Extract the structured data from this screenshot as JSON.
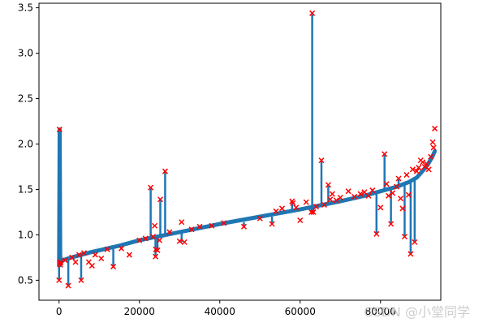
{
  "watermark": "CSDN @小堂同学",
  "chart_data": {
    "type": "line",
    "title": "",
    "xlabel": "",
    "ylabel": "",
    "xlim": [
      -5000,
      95000
    ],
    "ylim": [
      0.28,
      3.55
    ],
    "xticks": [
      0,
      20000,
      40000,
      60000,
      80000
    ],
    "yticks": [
      0.5,
      1.0,
      1.5,
      2.0,
      2.5,
      3.0,
      3.5
    ],
    "xtick_labels": [
      "0",
      "20000",
      "40000",
      "60000",
      "80000"
    ],
    "ytick_labels": [
      "0.5",
      "1.0",
      "1.5",
      "2.0",
      "2.5",
      "3.0",
      "3.5"
    ],
    "grid": false,
    "colors": {
      "line": "#1f77b4",
      "markers": "#ff0000"
    },
    "series": [
      {
        "type": "line",
        "x": [
          0,
          150,
          300,
          3000,
          8000,
          15000,
          20000,
          30000,
          40000,
          50000,
          60000,
          70000,
          76000,
          80000,
          84000,
          87000,
          89000,
          90000,
          91000,
          92000,
          93000,
          93500
        ],
        "y": [
          0.66,
          2.16,
          0.71,
          0.75,
          0.81,
          0.88,
          0.94,
          1.03,
          1.12,
          1.2,
          1.28,
          1.37,
          1.43,
          1.48,
          1.53,
          1.58,
          1.63,
          1.68,
          1.73,
          1.79,
          1.87,
          1.92
        ]
      },
      {
        "type": "spikes",
        "x": [
          0,
          100,
          2300,
          5500,
          13500,
          22800,
          24000,
          24500,
          25200,
          26400,
          30500,
          46000,
          53000,
          58000,
          62800,
          63000,
          63300,
          65300,
          67000,
          79000,
          81000,
          82600,
          84500,
          86000,
          87500,
          88500
        ],
        "base": [
          0.73,
          0.72,
          0.76,
          0.78,
          0.86,
          0.96,
          0.97,
          0.97,
          0.98,
          1.0,
          1.03,
          1.14,
          1.2,
          1.26,
          1.3,
          1.31,
          1.31,
          1.32,
          1.35,
          1.47,
          1.5,
          1.52,
          1.54,
          1.56,
          1.59,
          1.62
        ],
        "y": [
          0.5,
          2.16,
          0.44,
          0.5,
          0.65,
          1.52,
          0.76,
          0.83,
          1.39,
          1.7,
          0.92,
          1.09,
          1.12,
          1.37,
          1.25,
          3.44,
          1.25,
          1.82,
          1.55,
          1.01,
          1.89,
          1.12,
          1.62,
          0.98,
          0.79,
          0.92
        ]
      },
      {
        "type": "markers",
        "marker": "x",
        "x": [
          0,
          100,
          200,
          300,
          400,
          1500,
          2300,
          3200,
          4100,
          5000,
          5500,
          6200,
          7400,
          8200,
          9000,
          10500,
          12000,
          13500,
          15500,
          17500,
          20000,
          21500,
          22800,
          23400,
          23800,
          24000,
          24100,
          24500,
          25000,
          25200,
          26400,
          27500,
          30000,
          30500,
          31200,
          33000,
          35000,
          38000,
          41000,
          46000,
          50000,
          53000,
          54000,
          55500,
          58000,
          58200,
          59000,
          60000,
          61500,
          62800,
          63000,
          63300,
          64000,
          65300,
          66000,
          67000,
          67500,
          68000,
          69000,
          70000,
          72000,
          73500,
          75000,
          76000,
          77000,
          78000,
          79000,
          80000,
          81000,
          81500,
          82000,
          82600,
          83000,
          84000,
          84500,
          85000,
          85500,
          86000,
          86500,
          87000,
          87500,
          88000,
          88500,
          89000,
          89500,
          90000,
          90500,
          91000,
          91500,
          92000,
          92500,
          93000,
          93200,
          93500
        ],
        "y": [
          0.5,
          2.16,
          0.69,
          0.67,
          0.7,
          0.72,
          0.44,
          0.75,
          0.7,
          0.78,
          0.5,
          0.8,
          0.7,
          0.66,
          0.78,
          0.74,
          0.84,
          0.65,
          0.85,
          0.78,
          0.94,
          0.96,
          1.52,
          0.98,
          1.1,
          0.76,
          0.84,
          0.83,
          0.94,
          1.39,
          1.7,
          1.03,
          0.93,
          1.14,
          0.92,
          1.06,
          1.09,
          1.1,
          1.13,
          1.09,
          1.18,
          1.12,
          1.26,
          1.29,
          1.37,
          1.35,
          1.3,
          1.16,
          1.36,
          1.25,
          3.44,
          1.25,
          1.31,
          1.82,
          1.33,
          1.55,
          1.39,
          1.45,
          1.38,
          1.41,
          1.48,
          1.42,
          1.45,
          1.47,
          1.43,
          1.49,
          1.01,
          1.3,
          1.89,
          1.56,
          1.43,
          1.12,
          1.46,
          1.53,
          1.62,
          1.4,
          1.29,
          0.98,
          1.66,
          1.44,
          0.79,
          1.72,
          0.92,
          1.7,
          1.74,
          1.82,
          1.8,
          1.75,
          1.78,
          1.72,
          1.86,
          2.02,
          1.96,
          2.17
        ]
      }
    ]
  }
}
